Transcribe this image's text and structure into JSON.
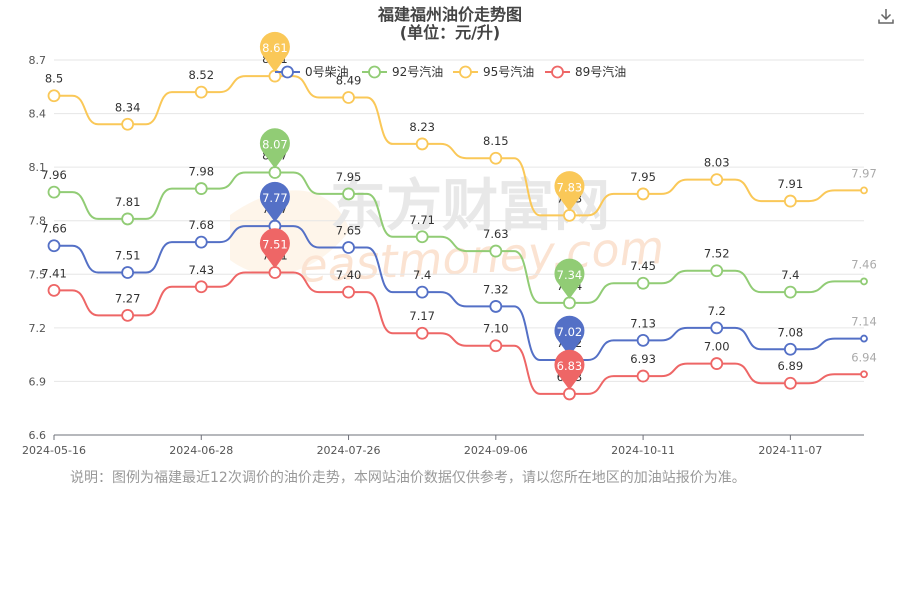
{
  "chart_data": {
    "type": "line",
    "title": "福建福州油价走势图",
    "subtitle": "(单位：元/升)",
    "x": [
      "2024-05-16",
      "",
      "2024-06-28",
      "",
      "2024-07-26",
      "",
      "2024-09-06",
      "",
      "2024-10-11",
      "",
      "2024-11-07",
      ""
    ],
    "x_tick_labels": [
      "2024-05-16",
      "2024-06-28",
      "2024-07-26",
      "2024-09-06",
      "2024-10-11",
      "2024-11-07"
    ],
    "ylim": [
      6.6,
      8.7
    ],
    "y_ticks": [
      "6.6",
      "6.9",
      "7.2",
      "7.5",
      "7.8",
      "8.1",
      "8.4",
      "8.7"
    ],
    "legend_position": "top",
    "grid": true,
    "series": [
      {
        "name": "0号柴油",
        "color": "#5470c6",
        "values": [
          7.66,
          7.51,
          7.68,
          7.77,
          7.65,
          7.4,
          7.32,
          7.02,
          7.13,
          7.2,
          7.08,
          7.14
        ],
        "labels": [
          "7.66",
          "7.51",
          "7.68",
          "7.77",
          "7.65",
          "7.4",
          "7.32",
          "7.02",
          "7.13",
          "7.2",
          "7.08",
          "7.14"
        ],
        "max_index": 3,
        "min_index": 7
      },
      {
        "name": "92号汽油",
        "color": "#91cc75",
        "values": [
          7.96,
          7.81,
          7.98,
          8.07,
          7.95,
          7.71,
          7.63,
          7.34,
          7.45,
          7.52,
          7.4,
          7.46
        ],
        "labels": [
          "7.96",
          "7.81",
          "7.98",
          "8.07",
          "7.95",
          "7.71",
          "7.63",
          "7.34",
          "7.45",
          "7.52",
          "7.4",
          "7.46"
        ],
        "max_index": 3,
        "min_index": 7
      },
      {
        "name": "95号汽油",
        "color": "#fac858",
        "values": [
          8.5,
          8.34,
          8.52,
          8.61,
          8.49,
          8.23,
          8.15,
          7.83,
          7.95,
          8.03,
          7.91,
          7.97
        ],
        "labels": [
          "8.5",
          "8.34",
          "8.52",
          "8.61",
          "8.49",
          "8.23",
          "8.15",
          "7.83",
          "7.95",
          "8.03",
          "7.91",
          "7.97"
        ],
        "max_index": 3,
        "min_index": 7
      },
      {
        "name": "89号汽油",
        "color": "#ee6666",
        "values": [
          7.41,
          7.27,
          7.43,
          7.51,
          7.4,
          7.17,
          7.1,
          6.83,
          6.93,
          7.0,
          6.89,
          6.94
        ],
        "labels": [
          "7.41",
          "7.27",
          "7.43",
          "7.51",
          "7.40",
          "7.17",
          "7.10",
          "6.83",
          "6.93",
          "7.00",
          "6.89",
          "6.94"
        ],
        "max_index": 3,
        "min_index": 7
      }
    ]
  },
  "watermark": {
    "cn": "东方财富网",
    "en": "eastmoney.com"
  },
  "note": "说明：图例为福建最近12次调价的油价走势，本网站油价数据仅供参考，请以您所在地区的加油站报价为准。",
  "icons": {
    "download": "download-icon"
  }
}
